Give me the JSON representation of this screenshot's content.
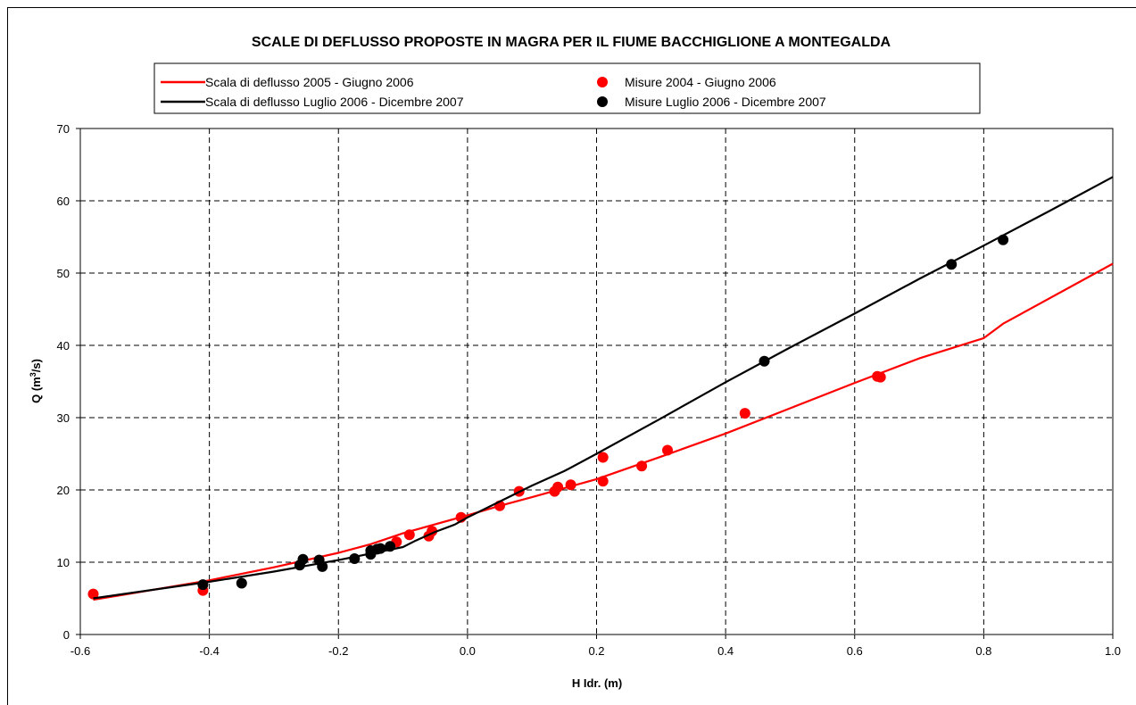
{
  "chart_data": {
    "type": "scatter",
    "title": "SCALE DI DEFLUSSO PROPOSTE IN MAGRA PER IL FIUME BACCHIGLIONE A MONTEGALDA",
    "xlabel": "H Idr. (m)",
    "ylabel": "Q (m3/s)",
    "ylabel_parts": {
      "pre": "Q (m",
      "sup": "3",
      "post": "/s)"
    },
    "xlim": [
      -0.6,
      1.0
    ],
    "ylim": [
      0,
      70
    ],
    "x_ticks": [
      -0.6,
      -0.4,
      -0.2,
      0.0,
      0.2,
      0.4,
      0.6,
      0.8,
      1.0
    ],
    "x_tick_labels": [
      "-0.6",
      "-0.4",
      "-0.2",
      "0.0",
      "0.2",
      "0.4",
      "0.6",
      "0.8",
      "1.0"
    ],
    "y_ticks": [
      0,
      10,
      20,
      30,
      40,
      50,
      60,
      70
    ],
    "y_tick_labels": [
      "0",
      "10",
      "20",
      "30",
      "40",
      "50",
      "60",
      "70"
    ],
    "grid": true,
    "legend_position": "top",
    "series": [
      {
        "name": "Scala di deflusso 2005 - Giugno 2006",
        "type": "line",
        "color": "#ff0000",
        "x": [
          -0.58,
          -0.4,
          -0.3,
          -0.2,
          -0.15,
          -0.1,
          0.0,
          0.05,
          0.1,
          0.2,
          0.3,
          0.4,
          0.5,
          0.6,
          0.7,
          0.8,
          0.83,
          1.0
        ],
        "y": [
          4.8,
          7.5,
          9.3,
          11.3,
          12.5,
          14.0,
          16.5,
          17.8,
          19.0,
          21.5,
          24.6,
          27.8,
          31.3,
          34.8,
          38.2,
          41.0,
          43.0,
          51.3
        ]
      },
      {
        "name": "Misure 2004 - Giugno 2006",
        "type": "scatter",
        "color": "#ff0000",
        "x": [
          -0.58,
          -0.41,
          -0.23,
          -0.11,
          -0.09,
          -0.06,
          -0.055,
          -0.01,
          0.05,
          0.08,
          0.135,
          0.14,
          0.16,
          0.21,
          0.21,
          0.27,
          0.31,
          0.43,
          0.635,
          0.64
        ],
        "y": [
          5.6,
          6.1,
          10.3,
          12.8,
          13.8,
          13.6,
          14.3,
          16.2,
          17.8,
          19.8,
          19.8,
          20.4,
          20.7,
          21.2,
          24.5,
          23.3,
          25.5,
          30.6,
          35.7,
          35.6
        ]
      },
      {
        "name": "Scala di deflusso Luglio 2006 - Dicembre 2007",
        "type": "line",
        "color": "#000000",
        "x": [
          -0.58,
          -0.4,
          -0.3,
          -0.2,
          -0.15,
          -0.1,
          -0.08,
          -0.05,
          -0.02,
          0.0,
          0.05,
          0.1,
          0.15,
          0.2,
          0.3,
          0.4,
          0.5,
          0.6,
          0.7,
          0.8,
          0.9,
          1.0
        ],
        "y": [
          5.0,
          7.3,
          8.7,
          10.3,
          11.2,
          12.1,
          13.0,
          14.2,
          15.2,
          16.2,
          18.4,
          20.6,
          22.6,
          25.0,
          29.9,
          34.9,
          39.7,
          44.4,
          49.2,
          53.8,
          58.5,
          63.3
        ]
      },
      {
        "name": "Misure Luglio 2006 - Dicembre 2007",
        "type": "scatter",
        "color": "#000000",
        "x": [
          -0.41,
          -0.35,
          -0.26,
          -0.255,
          -0.23,
          -0.225,
          -0.175,
          -0.15,
          -0.15,
          -0.14,
          -0.135,
          -0.12,
          0.46,
          0.75,
          0.83
        ],
        "y": [
          6.9,
          7.1,
          9.6,
          10.4,
          10.3,
          9.4,
          10.5,
          11.1,
          11.6,
          11.8,
          11.9,
          12.2,
          37.8,
          51.2,
          54.6
        ]
      }
    ]
  }
}
